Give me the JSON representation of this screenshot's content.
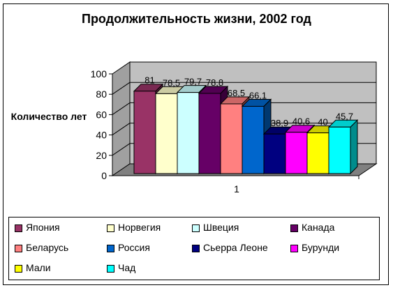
{
  "chart_data": {
    "type": "bar",
    "title": "Продолжительность жизни, 2002 год",
    "xlabel": "",
    "ylabel": "Количество лет",
    "ylim": [
      0,
      100
    ],
    "yticks": [
      "0",
      "20",
      "40",
      "60",
      "80",
      "100"
    ],
    "categories": [
      "1"
    ],
    "three_d": true,
    "legend_position": "bottom",
    "series": [
      {
        "name": "Япония",
        "value": 81,
        "label": "81",
        "color": "#993366"
      },
      {
        "name": "Норвегия",
        "value": 78.5,
        "label": "78,5",
        "color": "#ffffcc"
      },
      {
        "name": "Швеция",
        "value": 79.7,
        "label": "79,7",
        "color": "#ccffff"
      },
      {
        "name": "Канада",
        "value": 78.8,
        "label": "78,8",
        "color": "#660066"
      },
      {
        "name": "Беларусь",
        "value": 68.5,
        "label": "68,5",
        "color": "#ff8080"
      },
      {
        "name": "Россия",
        "value": 66.1,
        "label": "66,1",
        "color": "#0066cc"
      },
      {
        "name": "Сьерра Леоне",
        "value": 38.9,
        "label": "38,9",
        "color": "#000080"
      },
      {
        "name": "Бурунди",
        "value": 40.6,
        "label": "40,6",
        "color": "#ff00ff"
      },
      {
        "name": "Мали",
        "value": 40,
        "label": "40",
        "color": "#ffff00"
      },
      {
        "name": "Чад",
        "value": 45.7,
        "label": "45,7",
        "color": "#00ffff"
      }
    ],
    "wall_color": "#c0c0c0"
  }
}
